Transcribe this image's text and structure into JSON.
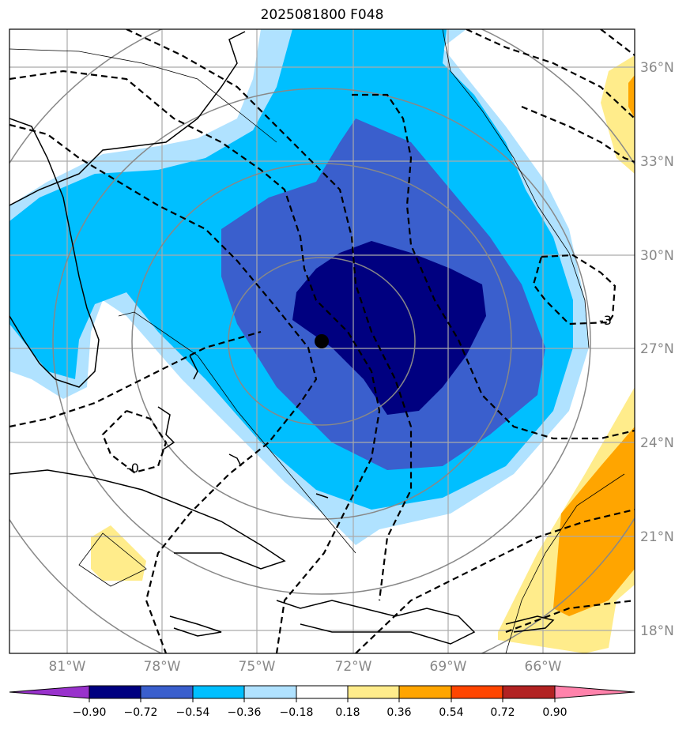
{
  "title": "2025081800 F048",
  "map": {
    "lon_labels": [
      "81°W",
      "78°W",
      "75°W",
      "72°W",
      "69°W",
      "66°W"
    ],
    "lat_labels": [
      "36°N",
      "33°N",
      "30°N",
      "27°N",
      "24°N",
      "21°N",
      "18°N"
    ],
    "contour_labels": [
      "-3",
      "-0"
    ],
    "center_marker": "storm-center"
  },
  "colorbar": {
    "labels": [
      "−0.90",
      "−0.72",
      "−0.54",
      "−0.36",
      "−0.18",
      "0.18",
      "0.36",
      "0.54",
      "0.72",
      "0.90"
    ],
    "colors": [
      "#9932cc",
      "#000080",
      "#3a5fcd",
      "#00bfff",
      "#b0e2ff",
      "#ffffff",
      "#ffec8b",
      "#ffa500",
      "#ff4500",
      "#b22222",
      "#ff82ab"
    ]
  }
}
